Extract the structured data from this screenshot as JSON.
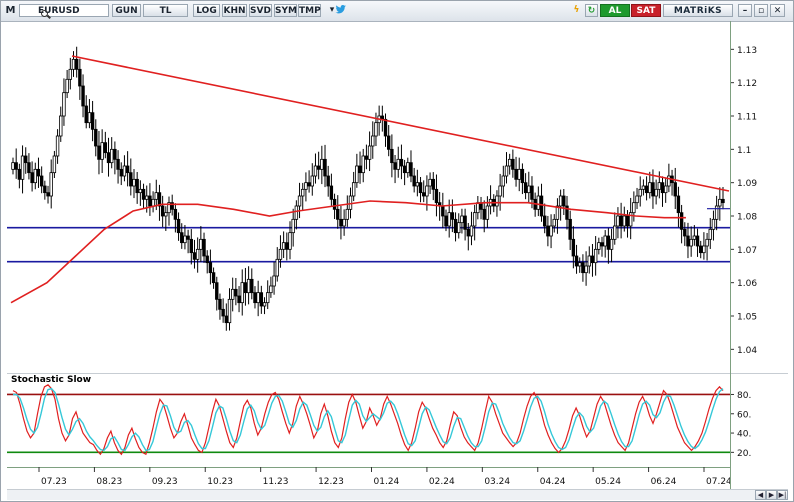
{
  "toolbar": {
    "app_icon": "M",
    "symbol": "EURUSD",
    "period_buttons": [
      "GUN",
      "TL",
      "LOG",
      "KHN",
      "SVD",
      "SYM",
      "TMP"
    ],
    "buy_label": "AL",
    "sell_label": "SAT",
    "brand": "MATRiKS"
  },
  "colors": {
    "candles": "#000000",
    "trendline": "#e02020",
    "moving_average": "#e02020",
    "support": "#1a1aa0",
    "stoch_fast": "#e02020",
    "stoch_slow": "#35c8d8",
    "stoch_overbought": "#9a1010",
    "stoch_oversold": "#0f8a0f",
    "buy_button": "#1f9a2e",
    "sell_button": "#c8202a"
  },
  "chart_data": [
    {
      "type": "candlestick",
      "symbol": "EURUSD",
      "ylim": [
        1.035,
        1.137
      ],
      "y_ticks": [
        "1.13",
        "1.12",
        "1.11",
        "1.1",
        "1.09",
        "1.08",
        "1.07",
        "1.06",
        "1.05",
        "1.04"
      ],
      "x_ticks": [
        "07.23",
        "08.23",
        "09.23",
        "10.23",
        "11.23",
        "12.23",
        "01.24",
        "02.24",
        "03.24",
        "04.24",
        "05.24",
        "06.24",
        "07.24"
      ],
      "grid": false,
      "approximate_closes": [
        1.096,
        1.094,
        1.091,
        1.098,
        1.096,
        1.093,
        1.09,
        1.094,
        1.092,
        1.089,
        1.087,
        1.086,
        1.093,
        1.098,
        1.104,
        1.11,
        1.117,
        1.121,
        1.124,
        1.127,
        1.124,
        1.119,
        1.113,
        1.108,
        1.111,
        1.106,
        1.101,
        1.097,
        1.102,
        1.099,
        1.096,
        1.1,
        1.097,
        1.094,
        1.092,
        1.095,
        1.093,
        1.089,
        1.091,
        1.087,
        1.088,
        1.085,
        1.086,
        1.083,
        1.085,
        1.087,
        1.083,
        1.08,
        1.081,
        1.084,
        1.082,
        1.079,
        1.075,
        1.072,
        1.074,
        1.073,
        1.069,
        1.067,
        1.07,
        1.073,
        1.068,
        1.066,
        1.063,
        1.06,
        1.055,
        1.052,
        1.05,
        1.048,
        1.055,
        1.058,
        1.056,
        1.054,
        1.06,
        1.057,
        1.061,
        1.057,
        1.054,
        1.057,
        1.053,
        1.054,
        1.057,
        1.059,
        1.062,
        1.067,
        1.07,
        1.072,
        1.07,
        1.075,
        1.079,
        1.083,
        1.086,
        1.088,
        1.09,
        1.089,
        1.092,
        1.095,
        1.094,
        1.097,
        1.092,
        1.089,
        1.085,
        1.082,
        1.079,
        1.077,
        1.079,
        1.082,
        1.086,
        1.09,
        1.095,
        1.093,
        1.098,
        1.097,
        1.101,
        1.104,
        1.108,
        1.11,
        1.109,
        1.104,
        1.1,
        1.096,
        1.094,
        1.097,
        1.095,
        1.093,
        1.096,
        1.092,
        1.089,
        1.09,
        1.087,
        1.086,
        1.089,
        1.091,
        1.088,
        1.084,
        1.083,
        1.08,
        1.077,
        1.081,
        1.079,
        1.075,
        1.078,
        1.08,
        1.076,
        1.074,
        1.077,
        1.081,
        1.084,
        1.082,
        1.079,
        1.083,
        1.085,
        1.083,
        1.086,
        1.089,
        1.092,
        1.095,
        1.097,
        1.094,
        1.091,
        1.094,
        1.09,
        1.087,
        1.089,
        1.085,
        1.082,
        1.086,
        1.08,
        1.077,
        1.074,
        1.077,
        1.079,
        1.083,
        1.086,
        1.083,
        1.079,
        1.073,
        1.068,
        1.065,
        1.066,
        1.063,
        1.065,
        1.068,
        1.066,
        1.07,
        1.072,
        1.071,
        1.074,
        1.07,
        1.073,
        1.077,
        1.08,
        1.077,
        1.08,
        1.077,
        1.081,
        1.084,
        1.086,
        1.088,
        1.089,
        1.087,
        1.09,
        1.086,
        1.088,
        1.09,
        1.087,
        1.089,
        1.092,
        1.09,
        1.086,
        1.081,
        1.076,
        1.074,
        1.071,
        1.073,
        1.074,
        1.071,
        1.069,
        1.071,
        1.073,
        1.076,
        1.079,
        1.083,
        1.085,
        1.084
      ],
      "moving_average": [
        {
          "x": 0.0,
          "y": 1.054
        },
        {
          "x": 0.05,
          "y": 1.06
        },
        {
          "x": 0.09,
          "y": 1.068
        },
        {
          "x": 0.13,
          "y": 1.076
        },
        {
          "x": 0.17,
          "y": 1.0815
        },
        {
          "x": 0.21,
          "y": 1.0835
        },
        {
          "x": 0.26,
          "y": 1.0835
        },
        {
          "x": 0.31,
          "y": 1.082
        },
        {
          "x": 0.36,
          "y": 1.08
        },
        {
          "x": 0.4,
          "y": 1.0815
        },
        {
          "x": 0.45,
          "y": 1.083
        },
        {
          "x": 0.5,
          "y": 1.0845
        },
        {
          "x": 0.55,
          "y": 1.084
        },
        {
          "x": 0.6,
          "y": 1.083
        },
        {
          "x": 0.66,
          "y": 1.084
        },
        {
          "x": 0.72,
          "y": 1.084
        },
        {
          "x": 0.78,
          "y": 1.082
        },
        {
          "x": 0.83,
          "y": 1.081
        },
        {
          "x": 0.87,
          "y": 1.08
        },
        {
          "x": 0.91,
          "y": 1.0795
        },
        {
          "x": 0.94,
          "y": 1.0795
        }
      ],
      "trendline": {
        "from": {
          "x": 0.085,
          "y": 1.128
        },
        "to": {
          "x": 1.0,
          "y": 1.0875
        }
      },
      "horizontal_levels": [
        1.0765,
        1.0663
      ],
      "last_price_marker": 1.0822
    },
    {
      "type": "line",
      "title": "Stochastic Slow",
      "ylim": [
        10,
        95
      ],
      "y_ticks": [
        "80.",
        "60.",
        "40.",
        "20."
      ],
      "levels": [
        80,
        20
      ],
      "series": [
        {
          "values": [
            84,
            82,
            70,
            55,
            42,
            35,
            40,
            60,
            78,
            88,
            90,
            86,
            75,
            55,
            40,
            32,
            38,
            55,
            62,
            50,
            40,
            35,
            30,
            28,
            22,
            18,
            24,
            35,
            42,
            30,
            22,
            18,
            25,
            38,
            45,
            34,
            25,
            20,
            18,
            30,
            45,
            62,
            75,
            70,
            58,
            45,
            35,
            40,
            52,
            60,
            48,
            35,
            28,
            22,
            20,
            30,
            46,
            62,
            75,
            68,
            55,
            42,
            30,
            25,
            35,
            52,
            68,
            74,
            66,
            50,
            38,
            45,
            60,
            72,
            80,
            82,
            75,
            62,
            50,
            40,
            50,
            68,
            78,
            70,
            60,
            48,
            35,
            42,
            60,
            70,
            58,
            42,
            30,
            25,
            35,
            55,
            72,
            80,
            72,
            58,
            45,
            52,
            66,
            58,
            48,
            55,
            70,
            78,
            70,
            60,
            50,
            38,
            28,
            22,
            30,
            45,
            62,
            72,
            66,
            55,
            45,
            38,
            30,
            25,
            32,
            48,
            62,
            58,
            46,
            36,
            30,
            26,
            22,
            30,
            45,
            62,
            78,
            72,
            60,
            50,
            40,
            35,
            30,
            26,
            30,
            40,
            55,
            68,
            78,
            82,
            75,
            62,
            48,
            38,
            30,
            24,
            20,
            24,
            32,
            44,
            58,
            66,
            58,
            46,
            36,
            42,
            56,
            70,
            78,
            72,
            60,
            48,
            38,
            30,
            26,
            22,
            30,
            45,
            60,
            72,
            78,
            70,
            58,
            50,
            60,
            72,
            84,
            80,
            70,
            58,
            46,
            38,
            30,
            26,
            22,
            26,
            32,
            40,
            52,
            65,
            76,
            84,
            88,
            84
          ]
        },
        {
          "values": [
            80,
            80,
            76,
            66,
            54,
            44,
            40,
            46,
            60,
            76,
            85,
            86,
            82,
            70,
            56,
            44,
            38,
            44,
            52,
            55,
            50,
            42,
            36,
            32,
            27,
            23,
            22,
            26,
            34,
            36,
            30,
            23,
            22,
            28,
            36,
            40,
            36,
            28,
            22,
            23,
            31,
            46,
            60,
            69,
            68,
            58,
            46,
            40,
            42,
            51,
            53,
            48,
            38,
            29,
            24,
            24,
            32,
            46,
            61,
            68,
            66,
            55,
            42,
            32,
            30,
            38,
            52,
            65,
            69,
            63,
            51,
            44,
            48,
            59,
            71,
            78,
            79,
            73,
            62,
            50,
            46,
            53,
            65,
            72,
            69,
            59,
            48,
            42,
            46,
            57,
            63,
            57,
            44,
            32,
            30,
            38,
            54,
            69,
            74,
            70,
            58,
            52,
            56,
            60,
            57,
            54,
            61,
            71,
            73,
            69,
            60,
            49,
            38,
            29,
            27,
            32,
            46,
            60,
            67,
            64,
            55,
            46,
            38,
            31,
            29,
            35,
            47,
            56,
            55,
            46,
            37,
            30,
            26,
            26,
            32,
            46,
            62,
            71,
            70,
            61,
            50,
            42,
            35,
            30,
            29,
            32,
            42,
            54,
            67,
            76,
            78,
            73,
            62,
            49,
            39,
            31,
            25,
            23,
            25,
            33,
            45,
            56,
            61,
            57,
            47,
            41,
            45,
            56,
            68,
            73,
            70,
            60,
            49,
            39,
            31,
            26,
            26,
            32,
            45,
            59,
            70,
            73,
            69,
            59,
            56,
            61,
            72,
            79,
            78,
            69,
            58,
            47,
            38,
            31,
            26,
            24,
            27,
            33,
            41,
            52,
            64,
            75,
            83,
            86
          ]
        }
      ]
    }
  ]
}
